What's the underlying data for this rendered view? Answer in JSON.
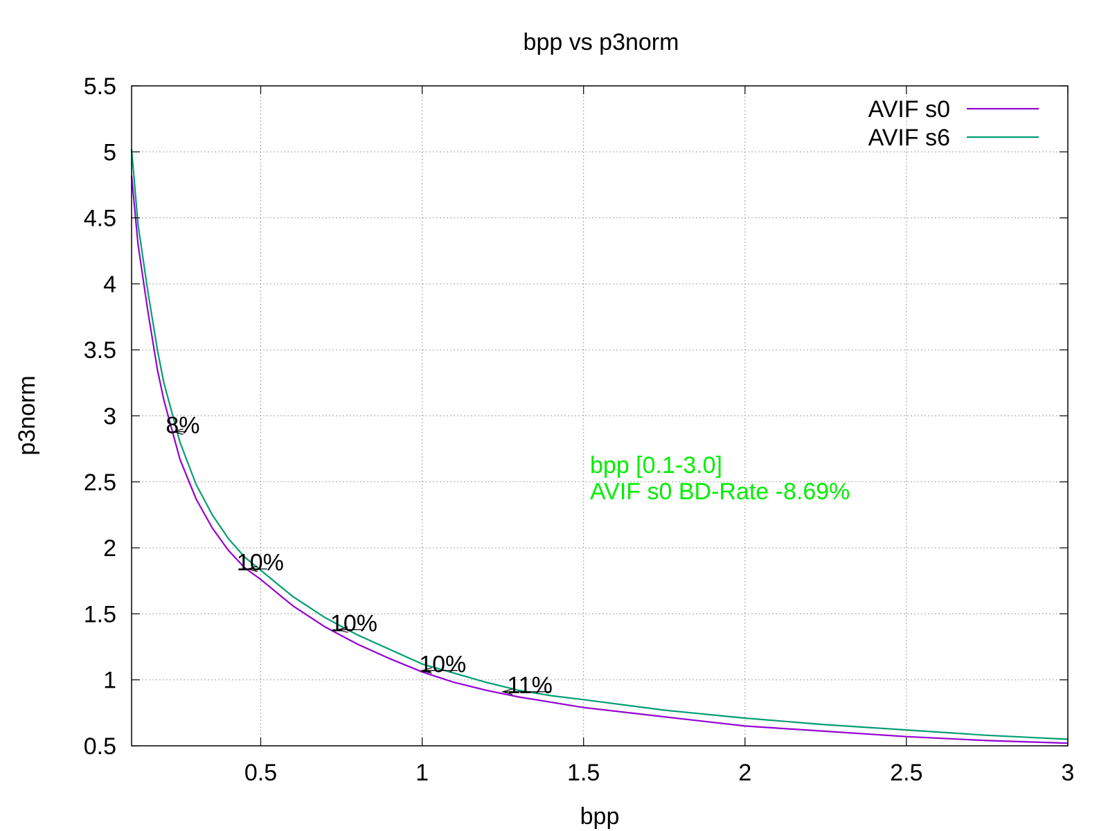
{
  "chart_data": {
    "type": "line",
    "title": "bpp vs p3norm",
    "xlabel": "bpp",
    "ylabel": "p3norm",
    "xlim": [
      0.1,
      3.0
    ],
    "ylim": [
      0.5,
      5.5
    ],
    "xticks": [
      {
        "value": 0.5,
        "label": "0.5"
      },
      {
        "value": 1.0,
        "label": "1"
      },
      {
        "value": 1.5,
        "label": "1.5"
      },
      {
        "value": 2.0,
        "label": "2"
      },
      {
        "value": 2.5,
        "label": "2.5"
      },
      {
        "value": 3.0,
        "label": "3"
      }
    ],
    "yticks": [
      {
        "value": 0.5,
        "label": "0.5"
      },
      {
        "value": 1.0,
        "label": "1"
      },
      {
        "value": 1.5,
        "label": "1.5"
      },
      {
        "value": 2.0,
        "label": "2"
      },
      {
        "value": 2.5,
        "label": "2.5"
      },
      {
        "value": 3.0,
        "label": "3"
      },
      {
        "value": 3.5,
        "label": "3.5"
      },
      {
        "value": 4.0,
        "label": "4"
      },
      {
        "value": 4.5,
        "label": "4.5"
      },
      {
        "value": 5.0,
        "label": "5"
      },
      {
        "value": 5.5,
        "label": "5.5"
      }
    ],
    "grid": true,
    "legend_position": "top-right",
    "series": [
      {
        "name": "AVIF s0",
        "color": "#9400d3",
        "x": [
          0.1,
          0.12,
          0.15,
          0.18,
          0.2,
          0.25,
          0.3,
          0.35,
          0.4,
          0.45,
          0.5,
          0.6,
          0.7,
          0.8,
          0.9,
          1.0,
          1.1,
          1.2,
          1.3,
          1.4,
          1.5,
          1.75,
          2.0,
          2.25,
          2.5,
          2.75,
          3.0
        ],
        "y": [
          4.82,
          4.3,
          3.8,
          3.35,
          3.12,
          2.67,
          2.37,
          2.15,
          1.98,
          1.85,
          1.76,
          1.56,
          1.4,
          1.27,
          1.16,
          1.06,
          0.98,
          0.92,
          0.87,
          0.83,
          0.79,
          0.72,
          0.65,
          0.61,
          0.57,
          0.54,
          0.52
        ]
      },
      {
        "name": "AVIF s6",
        "color": "#009e73",
        "x": [
          0.1,
          0.12,
          0.15,
          0.18,
          0.2,
          0.25,
          0.3,
          0.35,
          0.4,
          0.45,
          0.5,
          0.6,
          0.7,
          0.8,
          0.9,
          1.0,
          1.1,
          1.2,
          1.3,
          1.4,
          1.5,
          1.75,
          2.0,
          2.25,
          2.5,
          2.75,
          3.0
        ],
        "y": [
          5.02,
          4.45,
          3.95,
          3.5,
          3.25,
          2.8,
          2.48,
          2.25,
          2.07,
          1.93,
          1.83,
          1.63,
          1.47,
          1.34,
          1.23,
          1.12,
          1.05,
          0.98,
          0.92,
          0.88,
          0.85,
          0.77,
          0.71,
          0.66,
          0.62,
          0.58,
          0.55
        ]
      }
    ],
    "annotations": [
      {
        "text": "8%",
        "x1": 0.23,
        "x2": 0.27,
        "y": 2.88
      },
      {
        "text": "10%",
        "x1": 0.46,
        "x2": 0.52,
        "y": 1.84
      },
      {
        "text": "10%",
        "x1": 0.74,
        "x2": 0.82,
        "y": 1.38
      },
      {
        "text": "10%",
        "x1": 1.0,
        "x2": 1.11,
        "y": 1.07
      },
      {
        "text": "11%",
        "x1": 1.25,
        "x2": 1.4,
        "y": 0.91
      }
    ],
    "notes": {
      "color": "#00ee00",
      "line1": "bpp [0.1-3.0]",
      "line2": "AVIF s0 BD-Rate -8.69%",
      "x": 1.52,
      "y": 2.63
    }
  }
}
